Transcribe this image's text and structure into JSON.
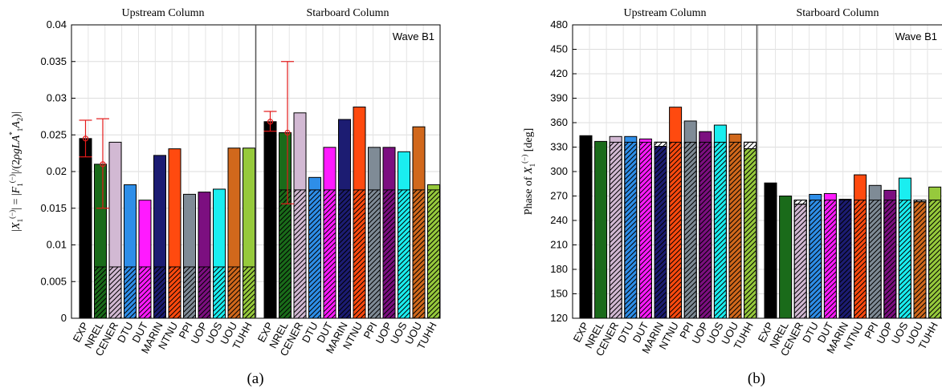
{
  "chart_data": [
    {
      "type": "bar",
      "panel": "(a)",
      "group_titles": [
        "Upstream Column",
        "Starboard Column"
      ],
      "annotation": "Wave B1",
      "ylabel": "|X_1^(−)| = |F_1^(−)|/(2ρgLA_1^*A_2)|",
      "ylim": [
        0,
        0.04
      ],
      "yticks": [
        0,
        0.005,
        0.01,
        0.015,
        0.02,
        0.025,
        0.03,
        0.035,
        0.04
      ],
      "ytick_labels": [
        "0",
        "0.005",
        "0.01",
        "0.015",
        "0.02",
        "0.025",
        "0.03",
        "0.035",
        "0.04"
      ],
      "grid": true,
      "categories": [
        "EXP",
        "NREL",
        "CENER",
        "DTU",
        "DUT",
        "MARIN",
        "NTNU",
        "PPI",
        "UOP",
        "UOS",
        "UOU",
        "TUHH"
      ],
      "groups": [
        {
          "name": "Upstream Column",
          "total": [
            0.0245,
            0.021,
            0.024,
            0.0182,
            0.0161,
            0.0222,
            0.0231,
            0.0169,
            0.0172,
            0.0176,
            0.0232,
            0.0232
          ],
          "hatched": [
            0.007,
            0.007,
            0.007,
            0.007,
            0.007,
            0.007,
            0.007,
            0.007,
            0.007,
            0.007,
            0.007,
            0.007
          ],
          "exp_errorbar": {
            "value": 0.0245,
            "low": 0.022,
            "high": 0.027
          },
          "nrel_errorbar": {
            "value": 0.021,
            "low": 0.015,
            "high": 0.0272
          }
        },
        {
          "name": "Starboard Column",
          "total": [
            0.0268,
            0.0253,
            0.028,
            0.0192,
            0.0233,
            0.0271,
            0.0288,
            0.0233,
            0.0233,
            0.0227,
            0.0261,
            0.0182
          ],
          "hatched": [
            0.0175,
            0.0175,
            0.0175,
            0.0175,
            0.0175,
            0.0175,
            0.0175,
            0.0175,
            0.0175,
            0.0175,
            0.0175,
            0.0175
          ],
          "exp_errorbar": {
            "value": 0.0268,
            "low": 0.0255,
            "high": 0.0282
          },
          "nrel_errorbar": {
            "value": 0.0253,
            "low": 0.0156,
            "high": 0.035
          }
        }
      ]
    },
    {
      "type": "bar",
      "panel": "(b)",
      "group_titles": [
        "Upstream Column",
        "Starboard Column"
      ],
      "annotation": "Wave B1",
      "ylabel": "Phase of X_1^(−) [deg]",
      "ylim": [
        120,
        480
      ],
      "yticks": [
        120,
        150,
        180,
        210,
        240,
        270,
        300,
        330,
        360,
        390,
        420,
        450,
        480
      ],
      "ytick_labels": [
        "120",
        "150",
        "180",
        "210",
        "240",
        "270",
        "300",
        "330",
        "360",
        "390",
        "420",
        "450",
        "480"
      ],
      "grid": true,
      "categories": [
        "EXP",
        "NREL",
        "CENER",
        "DTU",
        "DUT",
        "MARIN",
        "NTNU",
        "PPI",
        "UOP",
        "UOS",
        "UOU",
        "TUHH"
      ],
      "groups": [
        {
          "name": "Upstream Column",
          "total": [
            344,
            337,
            343,
            343,
            340,
            331,
            379,
            362,
            349,
            357,
            346,
            328
          ],
          "hatched": [
            120,
            120,
            336,
            336,
            336,
            336,
            336,
            336,
            336,
            336,
            336,
            336
          ]
        },
        {
          "name": "Starboard Column",
          "total": [
            286,
            270,
            260,
            272,
            273,
            266,
            296,
            283,
            277,
            292,
            263,
            281
          ],
          "hatched": [
            120,
            120,
            265,
            265,
            265,
            265,
            265,
            265,
            265,
            265,
            265,
            265
          ]
        }
      ]
    }
  ],
  "colors": [
    "#000000",
    "#1a6b1a",
    "#d2b9d3",
    "#2e8ee8",
    "#ff1aff",
    "#1c1c72",
    "#ff4a0f",
    "#7f8b96",
    "#7c0f80",
    "#1aeef0",
    "#d1681c",
    "#96c93c"
  ],
  "errorbar_color": "#e31a1a"
}
